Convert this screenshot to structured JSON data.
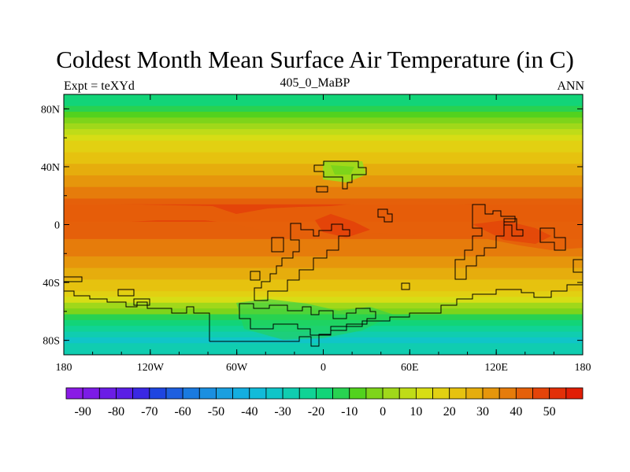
{
  "title": "Coldest Month Mean Surface Air Temperature (in C)",
  "left_label": "Expt = teXYd",
  "center_label": "405_0_MaBP",
  "right_label": "ANN",
  "map": {
    "projection": "equirectangular",
    "lon_range": [
      -180,
      180
    ],
    "lat_range": [
      -90,
      90
    ],
    "x_ticks": [
      {
        "lon": -180,
        "label": "180"
      },
      {
        "lon": -120,
        "label": "120W"
      },
      {
        "lon": -60,
        "label": "60W"
      },
      {
        "lon": 0,
        "label": "0"
      },
      {
        "lon": 60,
        "label": "60E"
      },
      {
        "lon": 120,
        "label": "120E"
      },
      {
        "lon": 180,
        "label": "180"
      }
    ],
    "y_ticks": [
      {
        "lat": 80,
        "label": "80N"
      },
      {
        "lat": 40,
        "label": "40N"
      },
      {
        "lat": 0,
        "label": "0"
      },
      {
        "lat": -40,
        "label": "40S"
      },
      {
        "lat": -80,
        "label": "80S"
      }
    ],
    "temperature_by_lat": [
      {
        "lat": 90,
        "t": -28
      },
      {
        "lat": 80,
        "t": -20
      },
      {
        "lat": 70,
        "t": -8
      },
      {
        "lat": 60,
        "t": 6
      },
      {
        "lat": 50,
        "t": 14
      },
      {
        "lat": 40,
        "t": 18
      },
      {
        "lat": 30,
        "t": 24
      },
      {
        "lat": 20,
        "t": 32
      },
      {
        "lat": 10,
        "t": 40
      },
      {
        "lat": 0,
        "t": 36
      },
      {
        "lat": -10,
        "t": 32
      },
      {
        "lat": -20,
        "t": 28
      },
      {
        "lat": -30,
        "t": 22
      },
      {
        "lat": -40,
        "t": 16
      },
      {
        "lat": -50,
        "t": 8
      },
      {
        "lat": -60,
        "t": -12
      },
      {
        "lat": -70,
        "t": -30
      },
      {
        "lat": -80,
        "t": -38
      },
      {
        "lat": -90,
        "t": -34
      }
    ]
  },
  "colorbar": {
    "labels": [
      "-90",
      "-80",
      "-70",
      "-60",
      "-50",
      "-40",
      "-30",
      "-20",
      "-10",
      "0",
      "10",
      "20",
      "30",
      "40",
      "50"
    ],
    "colors": [
      "#8a1ae6",
      "#7c1be6",
      "#6b1de6",
      "#5a1ee6",
      "#3a28e4",
      "#1e45e0",
      "#1e5fdf",
      "#1a7ae0",
      "#1a8fe0",
      "#1a9fdf",
      "#14aee0",
      "#12bbd9",
      "#10c5c8",
      "#10cdb0",
      "#10d395",
      "#12d478",
      "#28d251",
      "#52d21e",
      "#7ed41a",
      "#a0d81a",
      "#bfdc18",
      "#d7dd15",
      "#e2d012",
      "#e6c20f",
      "#e6ad0d",
      "#e6960c",
      "#e67c0b",
      "#e5600a",
      "#e44409",
      "#e23008",
      "#e01e06"
    ]
  }
}
